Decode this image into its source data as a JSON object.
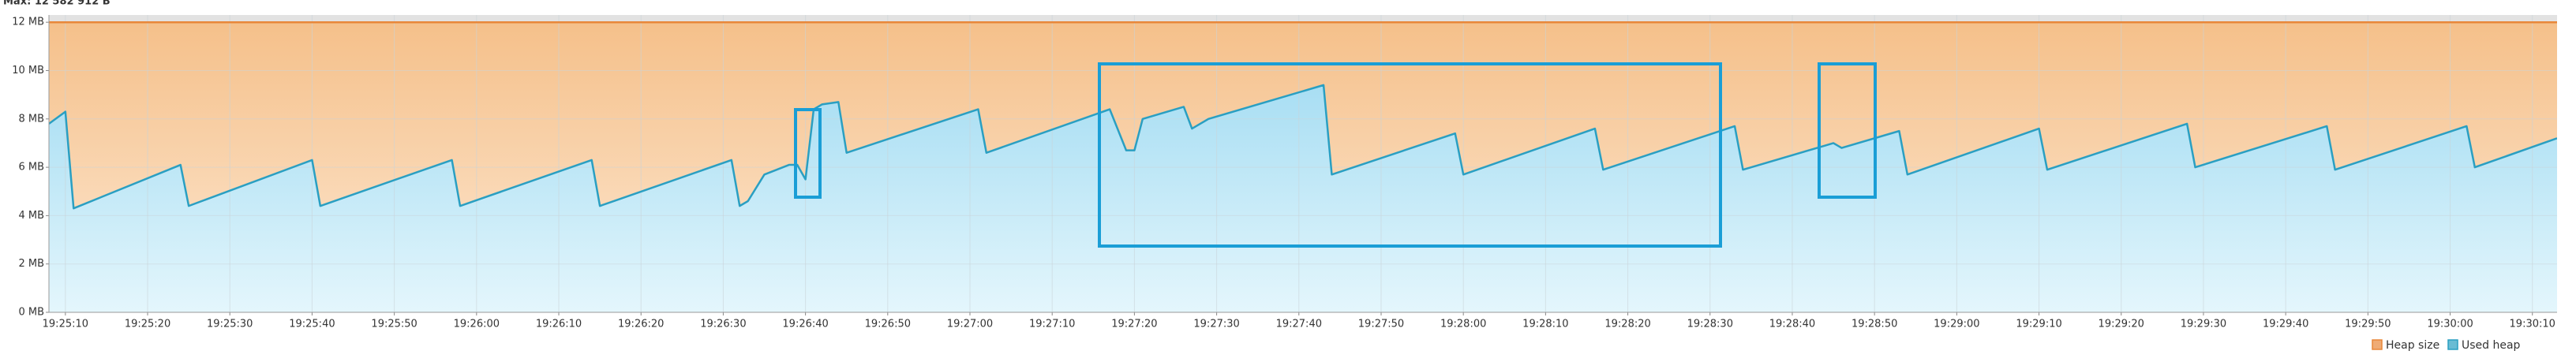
{
  "chart_data": {
    "type": "area",
    "subtitle": "Max: 12 582 912 B",
    "xlim": [
      "19:25:08",
      "19:30:13"
    ],
    "xticks": [
      "19:25:10",
      "19:25:20",
      "19:25:30",
      "19:25:40",
      "19:25:50",
      "19:26:00",
      "19:26:10",
      "19:26:20",
      "19:26:30",
      "19:26:40",
      "19:26:50",
      "19:27:00",
      "19:27:10",
      "19:27:20",
      "19:27:30",
      "19:27:40",
      "19:27:50",
      "19:28:00",
      "19:28:10",
      "19:28:20",
      "19:28:30",
      "19:28:40",
      "19:28:50",
      "19:29:00",
      "19:29:10",
      "19:29:20",
      "19:29:30",
      "19:29:40",
      "19:29:50",
      "19:30:00",
      "19:30:10"
    ],
    "ylim": [
      0,
      12.3
    ],
    "yticks": [
      {
        "value": 0,
        "label": "0 MB"
      },
      {
        "value": 2,
        "label": "2 MB"
      },
      {
        "value": 4,
        "label": "4 MB"
      },
      {
        "value": 6,
        "label": "6 MB"
      },
      {
        "value": 8,
        "label": "8 MB"
      },
      {
        "value": 10,
        "label": "10 MB"
      },
      {
        "value": 12,
        "label": "12 MB"
      }
    ],
    "grid": true,
    "legend": "bottom-right",
    "series": [
      {
        "name": "Heap size",
        "color": "#e8873a",
        "x": [
          "19:25:08",
          "19:30:13"
        ],
        "values": [
          12,
          12
        ]
      },
      {
        "name": "Used heap",
        "color": "#2a9fc2",
        "x": [
          "19:25:08",
          "19:25:10",
          "19:25:11",
          "19:25:24",
          "19:25:25",
          "19:25:40",
          "19:25:41",
          "19:25:57",
          "19:25:58",
          "19:26:14",
          "19:26:15",
          "19:26:31",
          "19:26:32",
          "19:26:33",
          "19:26:35",
          "19:26:38",
          "19:26:39",
          "19:26:40",
          "19:26:41",
          "19:26:42",
          "19:26:44",
          "19:26:45",
          "19:27:01",
          "19:27:02",
          "19:27:17",
          "19:27:19",
          "19:27:20",
          "19:27:21",
          "19:27:26",
          "19:27:27",
          "19:27:28",
          "19:27:29",
          "19:27:43",
          "19:27:44",
          "19:27:59",
          "19:28:00",
          "19:28:16",
          "19:28:17",
          "19:28:33",
          "19:28:34",
          "19:28:44",
          "19:28:45",
          "19:28:46",
          "19:28:53",
          "19:28:54",
          "19:29:10",
          "19:29:11",
          "19:29:28",
          "19:29:29",
          "19:29:45",
          "19:29:46",
          "19:30:02",
          "19:30:03",
          "19:30:13"
        ],
        "values": [
          7.8,
          8.3,
          4.3,
          6.1,
          4.4,
          6.3,
          4.4,
          6.3,
          4.4,
          6.3,
          4.4,
          6.3,
          4.4,
          4.6,
          5.7,
          6.1,
          6.1,
          5.5,
          8.4,
          8.6,
          8.7,
          6.6,
          8.4,
          6.6,
          8.4,
          6.7,
          6.7,
          8.0,
          8.5,
          7.6,
          7.8,
          8.0,
          9.4,
          5.7,
          7.4,
          5.7,
          7.6,
          5.9,
          7.7,
          5.9,
          6.9,
          7.0,
          6.8,
          7.5,
          5.7,
          7.6,
          5.9,
          7.8,
          6.0,
          7.7,
          5.9,
          7.7,
          6.0,
          7.2
        ]
      }
    ]
  }
}
